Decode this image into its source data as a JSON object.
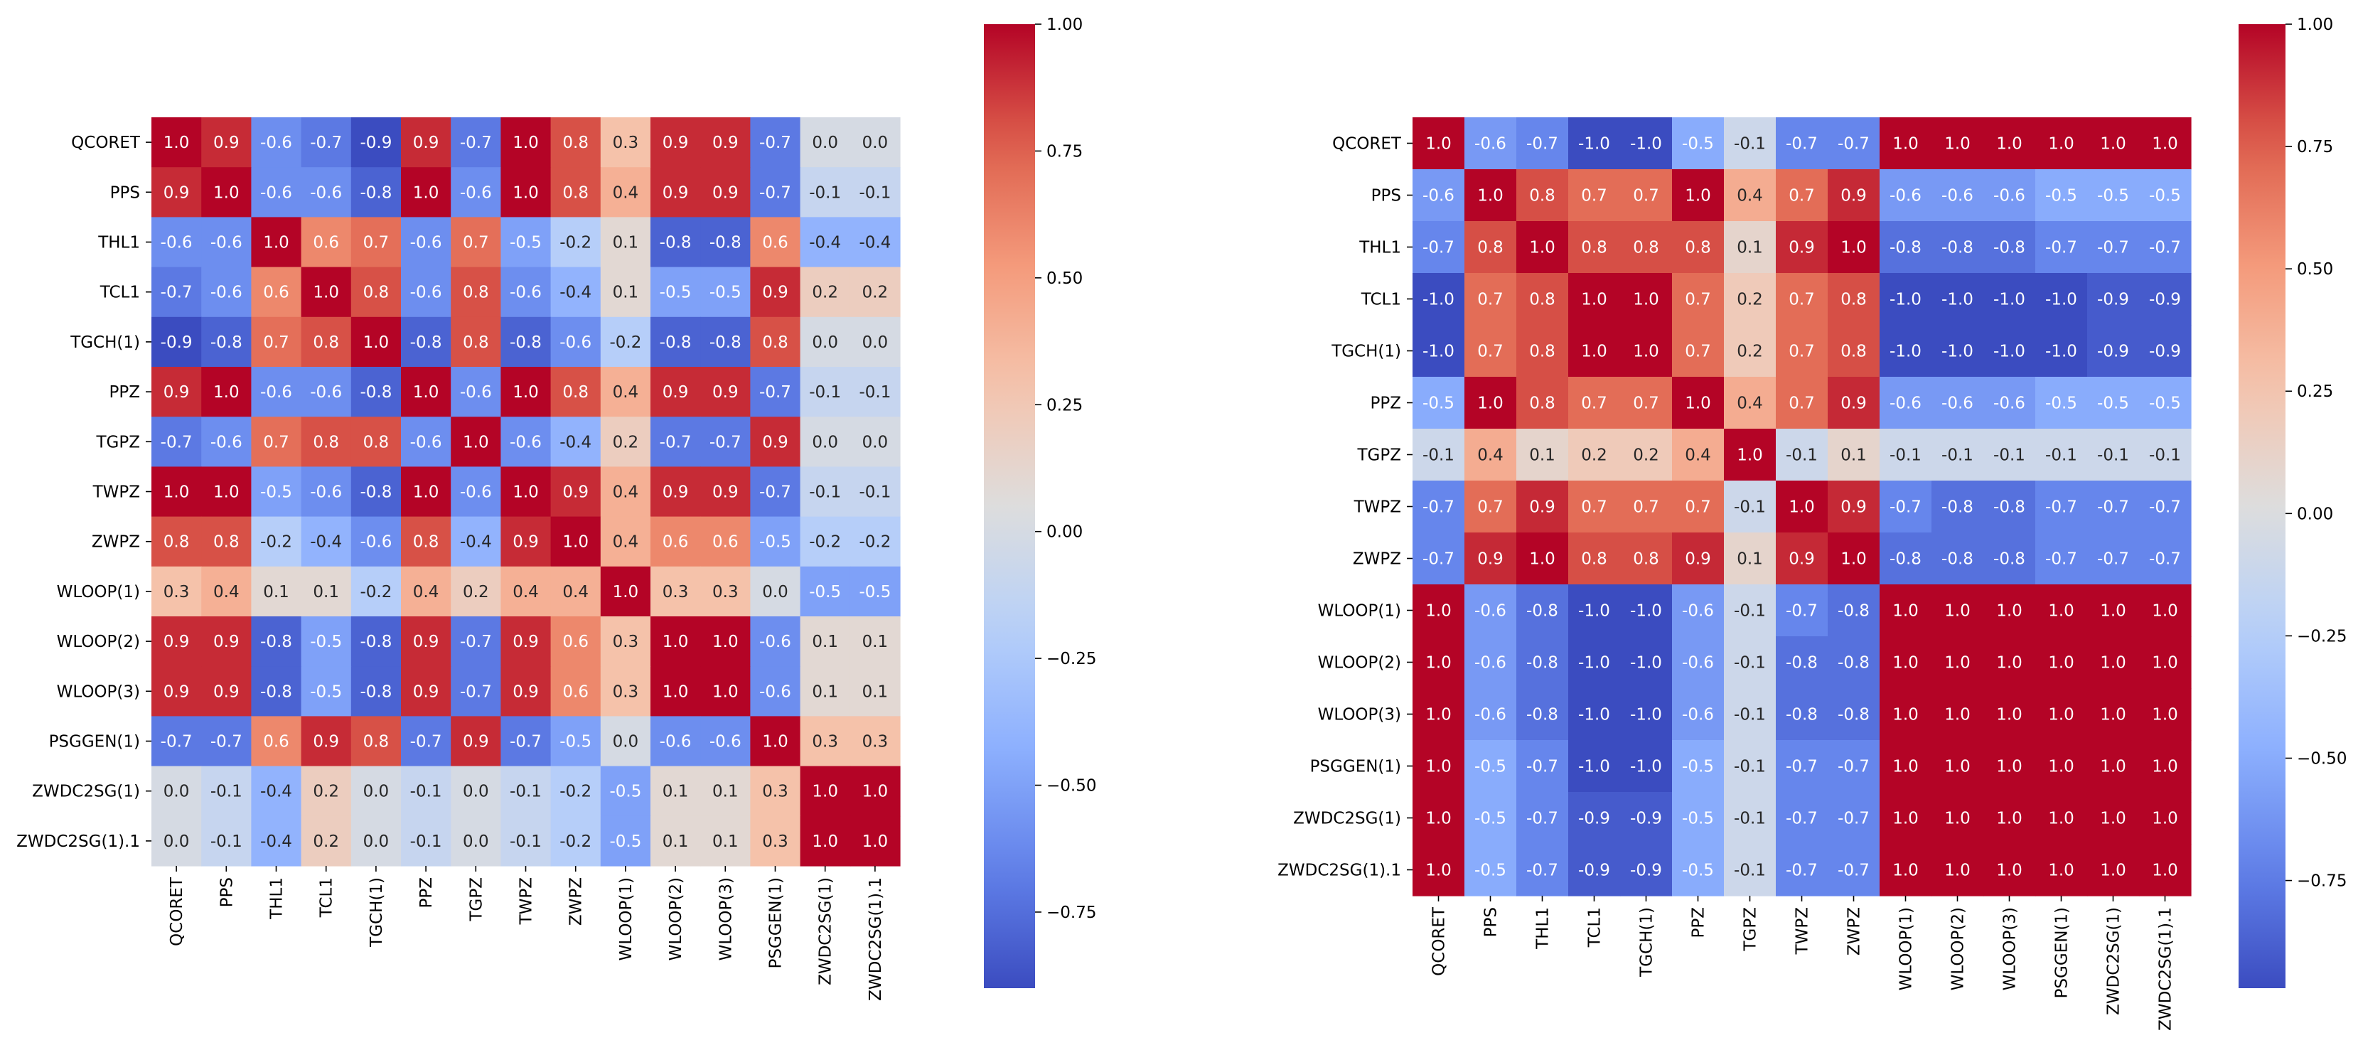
{
  "chart_data": [
    {
      "type": "heatmap",
      "title": "",
      "xlabel": "",
      "ylabel": "",
      "labels": [
        "QCORET",
        "PPS",
        "THL1",
        "TCL1",
        "TGCH(1)",
        "PPZ",
        "TGPZ",
        "TWPZ",
        "ZWPZ",
        "WLOOP(1)",
        "WLOOP(2)",
        "WLOOP(3)",
        "PSGGEN(1)",
        "ZWDC2SG(1)",
        "ZWDC2SG(1).1"
      ],
      "values": [
        [
          1.0,
          0.9,
          -0.6,
          -0.7,
          -0.9,
          0.9,
          -0.7,
          1.0,
          0.8,
          0.3,
          0.9,
          0.9,
          -0.7,
          0.0,
          0.0
        ],
        [
          0.9,
          1.0,
          -0.6,
          -0.6,
          -0.8,
          1.0,
          -0.6,
          1.0,
          0.8,
          0.4,
          0.9,
          0.9,
          -0.7,
          -0.1,
          -0.1
        ],
        [
          -0.6,
          -0.6,
          1.0,
          0.6,
          0.7,
          -0.6,
          0.7,
          -0.5,
          -0.2,
          0.1,
          -0.8,
          -0.8,
          0.6,
          -0.4,
          -0.4
        ],
        [
          -0.7,
          -0.6,
          0.6,
          1.0,
          0.8,
          -0.6,
          0.8,
          -0.6,
          -0.4,
          0.1,
          -0.5,
          -0.5,
          0.9,
          0.2,
          0.2
        ],
        [
          -0.9,
          -0.8,
          0.7,
          0.8,
          1.0,
          -0.8,
          0.8,
          -0.8,
          -0.6,
          -0.2,
          -0.8,
          -0.8,
          0.8,
          0.0,
          0.0
        ],
        [
          0.9,
          1.0,
          -0.6,
          -0.6,
          -0.8,
          1.0,
          -0.6,
          1.0,
          0.8,
          0.4,
          0.9,
          0.9,
          -0.7,
          -0.1,
          -0.1
        ],
        [
          -0.7,
          -0.6,
          0.7,
          0.8,
          0.8,
          -0.6,
          1.0,
          -0.6,
          -0.4,
          0.2,
          -0.7,
          -0.7,
          0.9,
          0.0,
          0.0
        ],
        [
          1.0,
          1.0,
          -0.5,
          -0.6,
          -0.8,
          1.0,
          -0.6,
          1.0,
          0.9,
          0.4,
          0.9,
          0.9,
          -0.7,
          -0.1,
          -0.1
        ],
        [
          0.8,
          0.8,
          -0.2,
          -0.4,
          -0.6,
          0.8,
          -0.4,
          0.9,
          1.0,
          0.4,
          0.6,
          0.6,
          -0.5,
          -0.2,
          -0.2
        ],
        [
          0.3,
          0.4,
          0.1,
          0.1,
          -0.2,
          0.4,
          0.2,
          0.4,
          0.4,
          1.0,
          0.3,
          0.3,
          0.0,
          -0.5,
          -0.5
        ],
        [
          0.9,
          0.9,
          -0.8,
          -0.5,
          -0.8,
          0.9,
          -0.7,
          0.9,
          0.6,
          0.3,
          1.0,
          1.0,
          -0.6,
          0.1,
          0.1
        ],
        [
          0.9,
          0.9,
          -0.8,
          -0.5,
          -0.8,
          0.9,
          -0.7,
          0.9,
          0.6,
          0.3,
          1.0,
          1.0,
          -0.6,
          0.1,
          0.1
        ],
        [
          -0.7,
          -0.7,
          0.6,
          0.9,
          0.8,
          -0.7,
          0.9,
          -0.7,
          -0.5,
          0.0,
          -0.6,
          -0.6,
          1.0,
          0.3,
          0.3
        ],
        [
          0.0,
          -0.1,
          -0.4,
          0.2,
          0.0,
          -0.1,
          0.0,
          -0.1,
          -0.2,
          -0.5,
          0.1,
          0.1,
          0.3,
          1.0,
          1.0
        ],
        [
          0.0,
          -0.1,
          -0.4,
          0.2,
          0.0,
          -0.1,
          0.0,
          -0.1,
          -0.2,
          -0.5,
          0.1,
          0.1,
          0.3,
          1.0,
          1.0
        ]
      ],
      "colorbar": {
        "range": [
          -0.9,
          1.0
        ],
        "ticks": [
          1.0,
          0.75,
          0.5,
          0.25,
          0.0,
          -0.25,
          -0.5,
          -0.75
        ],
        "tick_labels": [
          "1.00",
          "0.75",
          "0.50",
          "0.25",
          "0.00",
          "−0.25",
          "−0.50",
          "−0.75"
        ]
      },
      "colormap": "coolwarm"
    },
    {
      "type": "heatmap",
      "title": "",
      "xlabel": "",
      "ylabel": "",
      "labels": [
        "QCORET",
        "PPS",
        "THL1",
        "TCL1",
        "TGCH(1)",
        "PPZ",
        "TGPZ",
        "TWPZ",
        "ZWPZ",
        "WLOOP(1)",
        "WLOOP(2)",
        "WLOOP(3)",
        "PSGGEN(1)",
        "ZWDC2SG(1)",
        "ZWDC2SG(1).1"
      ],
      "values": [
        [
          1.0,
          -0.6,
          -0.7,
          -1.0,
          -1.0,
          -0.5,
          -0.1,
          -0.7,
          -0.7,
          1.0,
          1.0,
          1.0,
          1.0,
          1.0,
          1.0
        ],
        [
          -0.6,
          1.0,
          0.8,
          0.7,
          0.7,
          1.0,
          0.4,
          0.7,
          0.9,
          -0.6,
          -0.6,
          -0.6,
          -0.5,
          -0.5,
          -0.5
        ],
        [
          -0.7,
          0.8,
          1.0,
          0.8,
          0.8,
          0.8,
          0.1,
          0.9,
          1.0,
          -0.8,
          -0.8,
          -0.8,
          -0.7,
          -0.7,
          -0.7
        ],
        [
          -1.0,
          0.7,
          0.8,
          1.0,
          1.0,
          0.7,
          0.2,
          0.7,
          0.8,
          -1.0,
          -1.0,
          -1.0,
          -1.0,
          -0.9,
          -0.9
        ],
        [
          -1.0,
          0.7,
          0.8,
          1.0,
          1.0,
          0.7,
          0.2,
          0.7,
          0.8,
          -1.0,
          -1.0,
          -1.0,
          -1.0,
          -0.9,
          -0.9
        ],
        [
          -0.5,
          1.0,
          0.8,
          0.7,
          0.7,
          1.0,
          0.4,
          0.7,
          0.9,
          -0.6,
          -0.6,
          -0.6,
          -0.5,
          -0.5,
          -0.5
        ],
        [
          -0.1,
          0.4,
          0.1,
          0.2,
          0.2,
          0.4,
          1.0,
          -0.1,
          0.1,
          -0.1,
          -0.1,
          -0.1,
          -0.1,
          -0.1,
          -0.1
        ],
        [
          -0.7,
          0.7,
          0.9,
          0.7,
          0.7,
          0.7,
          -0.1,
          1.0,
          0.9,
          -0.7,
          -0.8,
          -0.8,
          -0.7,
          -0.7,
          -0.7
        ],
        [
          -0.7,
          0.9,
          1.0,
          0.8,
          0.8,
          0.9,
          0.1,
          0.9,
          1.0,
          -0.8,
          -0.8,
          -0.8,
          -0.7,
          -0.7,
          -0.7
        ],
        [
          1.0,
          -0.6,
          -0.8,
          -1.0,
          -1.0,
          -0.6,
          -0.1,
          -0.7,
          -0.8,
          1.0,
          1.0,
          1.0,
          1.0,
          1.0,
          1.0
        ],
        [
          1.0,
          -0.6,
          -0.8,
          -1.0,
          -1.0,
          -0.6,
          -0.1,
          -0.8,
          -0.8,
          1.0,
          1.0,
          1.0,
          1.0,
          1.0,
          1.0
        ],
        [
          1.0,
          -0.6,
          -0.8,
          -1.0,
          -1.0,
          -0.6,
          -0.1,
          -0.8,
          -0.8,
          1.0,
          1.0,
          1.0,
          1.0,
          1.0,
          1.0
        ],
        [
          1.0,
          -0.5,
          -0.7,
          -1.0,
          -1.0,
          -0.5,
          -0.1,
          -0.7,
          -0.7,
          1.0,
          1.0,
          1.0,
          1.0,
          1.0,
          1.0
        ],
        [
          1.0,
          -0.5,
          -0.7,
          -0.9,
          -0.9,
          -0.5,
          -0.1,
          -0.7,
          -0.7,
          1.0,
          1.0,
          1.0,
          1.0,
          1.0,
          1.0
        ],
        [
          1.0,
          -0.5,
          -0.7,
          -0.9,
          -0.9,
          -0.5,
          -0.1,
          -0.7,
          -0.7,
          1.0,
          1.0,
          1.0,
          1.0,
          1.0,
          1.0
        ]
      ],
      "colorbar": {
        "range": [
          -0.97,
          1.0
        ],
        "ticks": [
          1.0,
          0.75,
          0.5,
          0.25,
          0.0,
          -0.25,
          -0.5,
          -0.75
        ],
        "tick_labels": [
          "1.00",
          "0.75",
          "0.50",
          "0.25",
          "0.00",
          "−0.25",
          "−0.50",
          "−0.75"
        ]
      },
      "colormap": "coolwarm"
    }
  ]
}
